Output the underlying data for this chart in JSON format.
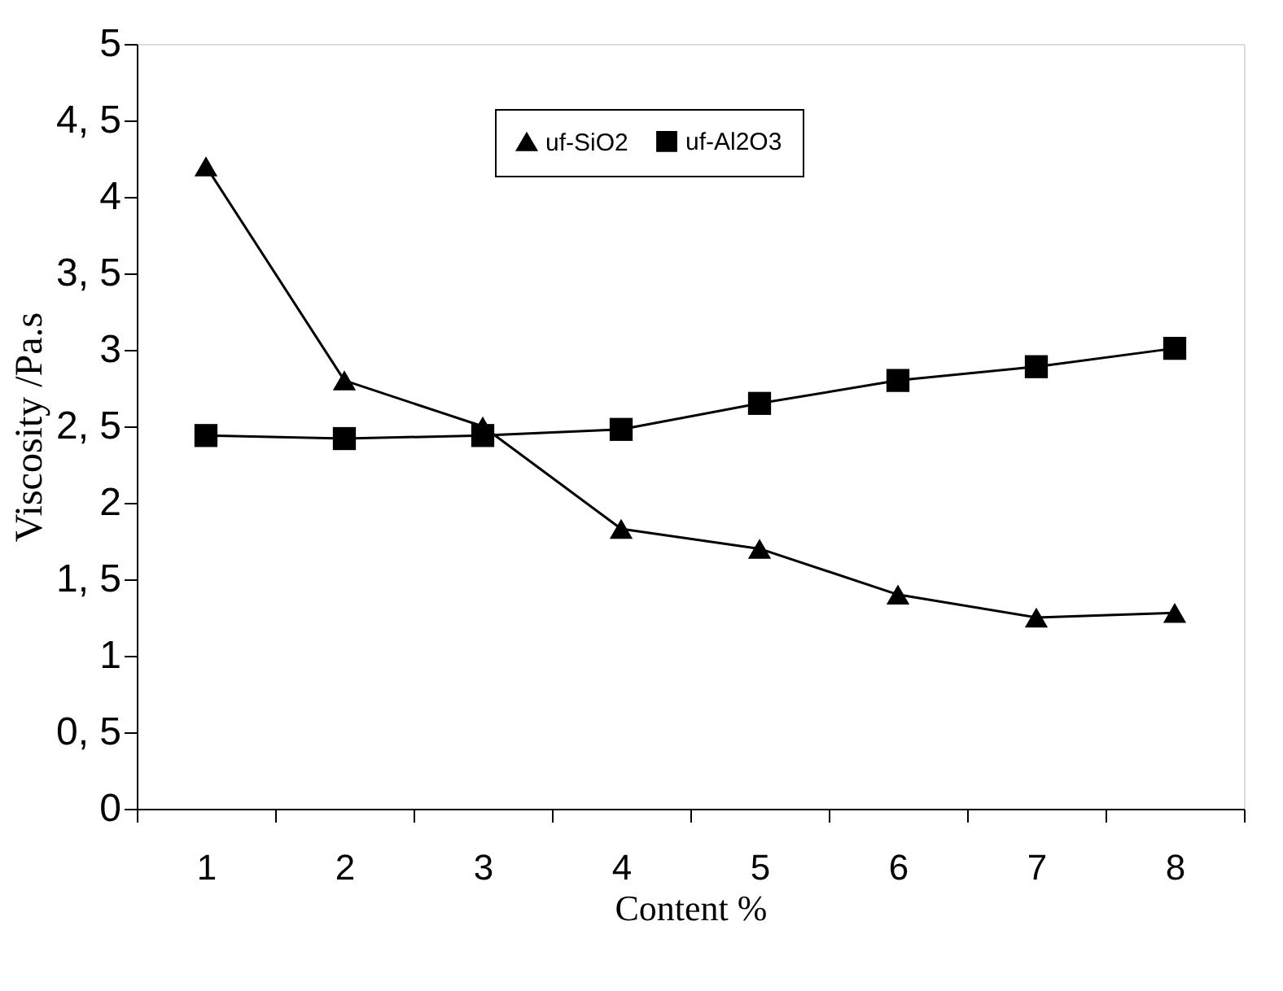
{
  "chart_data": {
    "type": "line",
    "xlabel": "Content %",
    "ylabel": "Viscosity /Pa.s",
    "categories": [
      "1",
      "2",
      "3",
      "4",
      "5",
      "6",
      "7",
      "8"
    ],
    "series": [
      {
        "name": "uf-SiO2",
        "color": "#000000",
        "marker": "triangle",
        "values": [
          4.2,
          2.8,
          2.5,
          1.83,
          1.7,
          1.4,
          1.25,
          1.28
        ]
      },
      {
        "name": "uf-Al2O3",
        "color": "#000000",
        "marker": "square",
        "values": [
          2.44,
          2.42,
          2.44,
          2.48,
          2.65,
          2.8,
          2.89,
          3.01
        ]
      }
    ],
    "ylim": [
      0,
      5
    ],
    "yticks": [
      0,
      {
        "value": 0.5,
        "label": "0, 5"
      },
      1,
      {
        "value": 1.5,
        "label": "1, 5"
      },
      2,
      {
        "value": 2.5,
        "label": "2, 5"
      },
      3,
      {
        "value": 3.5,
        "label": "3, 5"
      },
      4,
      {
        "value": 4.5,
        "label": "4, 5"
      },
      5
    ],
    "grid": false,
    "legend": "top",
    "line_style": "solid"
  }
}
